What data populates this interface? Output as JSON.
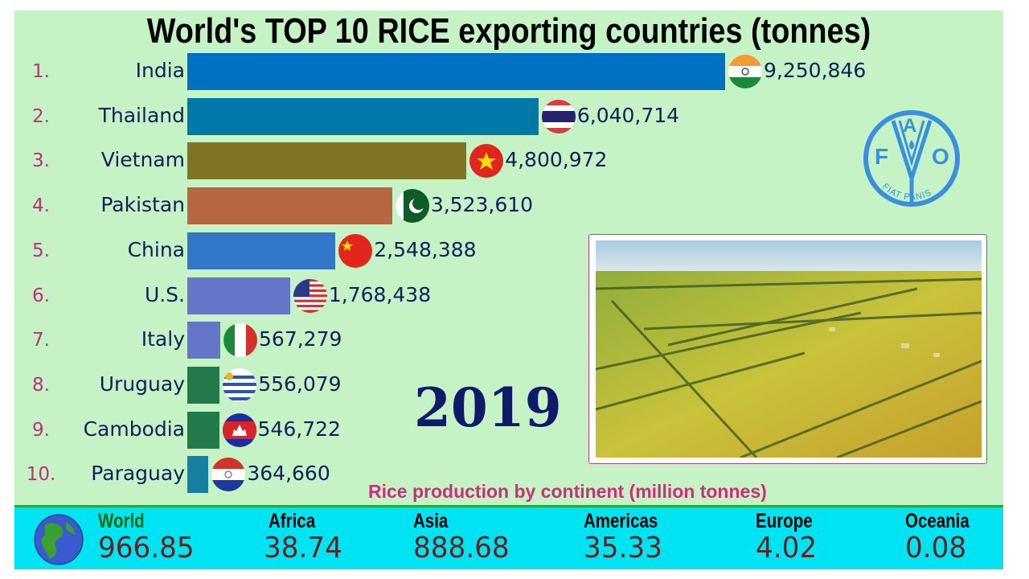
{
  "chart_data": {
    "type": "bar",
    "orientation": "horizontal",
    "title": "World's TOP 10 RICE exporting countries (tonnes)",
    "year": "2019",
    "categories": [
      "India",
      "Thailand",
      "Vietnam",
      "Pakistan",
      "China",
      "U.S.",
      "Italy",
      "Uruguay",
      "Cambodia",
      "Paraguay"
    ],
    "ranks": [
      "1.",
      "2.",
      "3.",
      "4.",
      "5.",
      "6.",
      "7.",
      "8.",
      "9.",
      "10."
    ],
    "values": [
      9250846,
      6040714,
      4800972,
      3523610,
      2548388,
      1768438,
      567279,
      556079,
      546722,
      364660
    ],
    "value_labels": [
      "9,250,846",
      "6,040,714",
      "4,800,972",
      "3,523,610",
      "2,548,388",
      "1,768,438",
      "567,279",
      "556,079",
      "546,722",
      "364,660"
    ],
    "colors": [
      "#0071c2",
      "#0078a8",
      "#7f7422",
      "#b66640",
      "#3377c9",
      "#6576c9",
      "#6576c9",
      "#227a4b",
      "#227a4b",
      "#1780a2"
    ],
    "flags": [
      "india-flag",
      "thailand-flag",
      "vietnam-flag",
      "pakistan-flag",
      "china-flag",
      "usa-flag",
      "italy-flag",
      "uruguay-flag",
      "cambodia-flag",
      "paraguay-flag"
    ],
    "grid": false,
    "legend": "none"
  },
  "logo": {
    "letters": [
      "F",
      "A",
      "O"
    ],
    "motto": "FIAT PANIS",
    "color": "#3a8fe0"
  },
  "continents": {
    "title": "Rice production by continent (million tonnes)",
    "items": [
      {
        "label": "World",
        "value": "966.85"
      },
      {
        "label": "Africa",
        "value": "38.74"
      },
      {
        "label": "Asia",
        "value": "888.68"
      },
      {
        "label": "Americas",
        "value": "35.33"
      },
      {
        "label": "Europe",
        "value": "4.02"
      },
      {
        "label": "Oceania",
        "value": "0.08"
      }
    ]
  }
}
